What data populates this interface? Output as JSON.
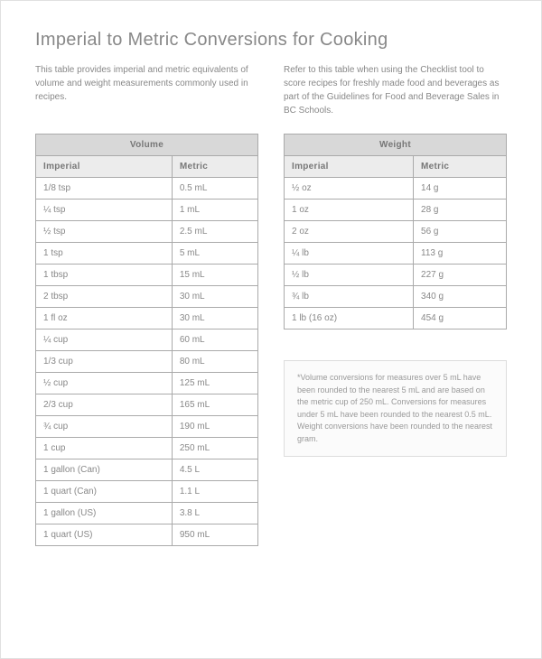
{
  "title": "Imperial to Metric Conversions for Cooking",
  "intro_left": "This table provides imperial and metric equivalents of volume and weight measurements commonly used in recipes.",
  "intro_right": "Refer to this table when using the Checklist tool to score recipes for freshly made food and beverages as part of the Guidelines for Food and Beverage Sales in BC Schools.",
  "volume_table": {
    "title": "Volume",
    "columns": [
      "Imperial",
      "Metric"
    ],
    "rows": [
      [
        "1/8 tsp",
        "0.5 mL"
      ],
      [
        "¼ tsp",
        "1 mL"
      ],
      [
        "½ tsp",
        "2.5 mL"
      ],
      [
        "1 tsp",
        "5 mL"
      ],
      [
        "1 tbsp",
        "15 mL"
      ],
      [
        "2 tbsp",
        "30 mL"
      ],
      [
        "1 fl oz",
        "30 mL"
      ],
      [
        "¼ cup",
        "60 mL"
      ],
      [
        "1/3 cup",
        "80 mL"
      ],
      [
        "½ cup",
        "125 mL"
      ],
      [
        "2/3 cup",
        "165 mL"
      ],
      [
        "¾ cup",
        "190 mL"
      ],
      [
        "1 cup",
        "250 mL"
      ],
      [
        "1 gallon (Can)",
        "4.5 L"
      ],
      [
        "1 quart (Can)",
        "1.1 L"
      ],
      [
        "1 gallon (US)",
        "3.8 L"
      ],
      [
        "1 quart (US)",
        "950 mL"
      ]
    ]
  },
  "weight_table": {
    "title": "Weight",
    "columns": [
      "Imperial",
      "Metric"
    ],
    "rows": [
      [
        "½ oz",
        "14 g"
      ],
      [
        "1 oz",
        "28 g"
      ],
      [
        "2 oz",
        "56 g"
      ],
      [
        "¼ lb",
        "113 g"
      ],
      [
        "½ lb",
        "227 g"
      ],
      [
        "¾ lb",
        "340 g"
      ],
      [
        "1 lb (16 oz)",
        "454 g"
      ]
    ]
  },
  "footnote": "*Volume conversions for measures over 5 mL have been rounded to the nearest 5 mL and are based on the metric cup of 250 mL. Conversions for measures under 5 mL have been rounded to the nearest 0.5 mL. Weight conversions have been rounded to the nearest gram.",
  "styles": {
    "page_bg": "#ffffff",
    "text_color": "#888888",
    "border_color": "#aaaaaa",
    "header_bg": "#d8d8d8",
    "subheader_bg": "#ececec",
    "footnote_border": "#dddddd",
    "footnote_bg": "#fbfbfb",
    "title_fontsize": 20,
    "body_fontsize": 10,
    "footnote_fontsize": 9
  }
}
